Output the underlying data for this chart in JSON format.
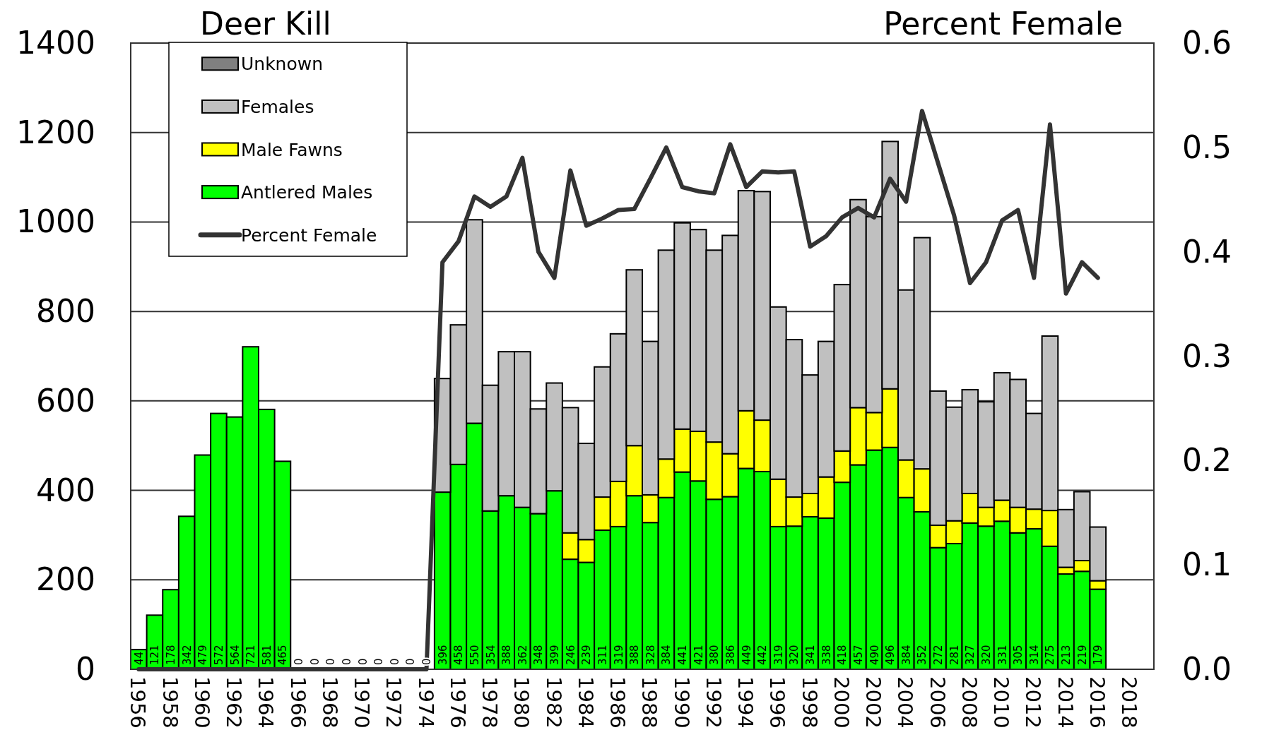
{
  "chart_data": {
    "type": "bar",
    "stacked": true,
    "ylabel": "Deer Kill",
    "y2label": "Percent Female",
    "x": [
      1956,
      1957,
      1958,
      1959,
      1960,
      1961,
      1962,
      1963,
      1964,
      1965,
      1966,
      1967,
      1968,
      1969,
      1970,
      1971,
      1972,
      1973,
      1974,
      1975,
      1976,
      1977,
      1978,
      1979,
      1980,
      1981,
      1982,
      1983,
      1984,
      1985,
      1986,
      1987,
      1988,
      1989,
      1990,
      1991,
      1992,
      1993,
      1994,
      1995,
      1996,
      1997,
      1998,
      1999,
      2000,
      2001,
      2002,
      2003,
      2004,
      2005,
      2006,
      2007,
      2008,
      2009,
      2010,
      2011,
      2012,
      2013,
      2014,
      2015,
      2016
    ],
    "xlim": [
      1955.5,
      2019.5
    ],
    "xticks": [
      1956,
      1958,
      1960,
      1962,
      1964,
      1966,
      1968,
      1970,
      1972,
      1974,
      1976,
      1978,
      1980,
      1982,
      1984,
      1986,
      1988,
      1990,
      1992,
      1994,
      1996,
      1998,
      2000,
      2002,
      2004,
      2006,
      2008,
      2010,
      2012,
      2014,
      2016,
      2018
    ],
    "ylim": [
      0,
      1400
    ],
    "yticks": [
      0,
      200,
      400,
      600,
      800,
      1000,
      1200,
      1400
    ],
    "y2lim": [
      0,
      0.6
    ],
    "y2ticks": [
      {
        "value": 0,
        "label": "0.0"
      },
      0.1,
      0.2,
      0.3,
      0.4,
      0.5,
      0.6
    ],
    "grid": "y",
    "legend": "top left",
    "series": [
      {
        "name": "Antlered Males",
        "color": "#00ff00",
        "values": [
          44,
          121,
          178,
          342,
          479,
          572,
          564,
          721,
          581,
          465,
          0,
          0,
          0,
          0,
          0,
          0,
          0,
          0,
          0,
          396,
          458,
          550,
          354,
          388,
          362,
          348,
          399,
          246,
          239,
          311,
          319,
          388,
          328,
          384,
          441,
          421,
          380,
          386,
          449,
          442,
          319,
          320,
          341,
          338,
          418,
          457,
          490,
          496,
          384,
          352,
          272,
          281,
          327,
          320,
          331,
          305,
          314,
          275,
          213,
          219,
          179
        ],
        "value_labels": [
          "44",
          "121",
          "178",
          "342",
          "479",
          "572",
          "564",
          "721",
          "581",
          "465",
          "0",
          "0",
          "0",
          "0",
          "0",
          "0",
          "0",
          "0",
          "0",
          "396",
          "458",
          "550",
          "354",
          "388",
          "362",
          "348",
          "399",
          "246",
          "239",
          "311",
          "319",
          "388",
          "328",
          "384",
          "441",
          "421",
          "380",
          "386",
          "449",
          "442",
          "319",
          "320",
          "341",
          "338",
          "418",
          "457",
          "490",
          "496",
          "384",
          "352",
          "272",
          "281",
          "327",
          "320",
          "331",
          "305",
          "314",
          "275",
          "213",
          "219",
          "179"
        ]
      },
      {
        "name": "Male Fawns",
        "color": "#ffff00",
        "values": [
          null,
          null,
          null,
          null,
          null,
          null,
          null,
          null,
          null,
          null,
          null,
          null,
          null,
          null,
          null,
          null,
          null,
          null,
          null,
          null,
          null,
          null,
          null,
          null,
          null,
          null,
          null,
          59,
          51,
          74,
          101,
          112,
          62,
          86,
          96,
          111,
          128,
          96,
          129,
          115,
          106,
          65,
          52,
          92,
          70,
          128,
          84,
          131,
          84,
          96,
          50,
          51,
          66,
          42,
          47,
          57,
          44,
          80,
          15,
          24,
          19
        ]
      },
      {
        "name": "Females",
        "color": "#c0c0c0",
        "values": [
          null,
          null,
          null,
          null,
          null,
          null,
          null,
          null,
          null,
          null,
          null,
          null,
          null,
          null,
          null,
          null,
          null,
          null,
          null,
          254,
          312,
          455,
          281,
          322,
          348,
          234,
          241,
          280,
          215,
          291,
          330,
          393,
          343,
          467,
          461,
          451,
          429,
          488,
          492,
          511,
          385,
          352,
          265,
          303,
          372,
          465,
          438,
          553,
          380,
          517,
          300,
          254,
          232,
          236,
          285,
          286,
          214,
          390,
          129,
          154,
          120
        ]
      },
      {
        "name": "Unknown",
        "color": "#808080",
        "values": [
          null,
          null,
          null,
          null,
          null,
          null,
          null,
          null,
          null,
          null,
          null,
          null,
          null,
          null,
          null,
          null,
          null,
          null,
          null,
          0,
          0,
          0,
          0,
          0,
          0,
          0,
          0,
          0,
          0,
          0,
          0,
          0,
          0,
          0,
          0,
          0,
          0,
          0,
          0,
          0,
          0,
          0,
          0,
          0,
          0,
          0,
          0,
          0,
          0,
          0,
          0,
          0,
          0,
          0,
          0,
          0,
          0,
          0,
          0,
          0,
          0
        ]
      },
      {
        "name": "Percent Female",
        "type": "line",
        "axis": "y2",
        "color": "#333333",
        "values": [
          0,
          0,
          0,
          0,
          0,
          0,
          0,
          0,
          0,
          0,
          0,
          0,
          0,
          0,
          0,
          0,
          0,
          0,
          0,
          0.39,
          0.41,
          0.453,
          0.443,
          0.453,
          0.49,
          0.4,
          0.375,
          0.478,
          0.425,
          0.432,
          0.44,
          0.441,
          0.47,
          0.5,
          0.462,
          0.458,
          0.456,
          0.503,
          0.462,
          0.477,
          0.476,
          0.477,
          0.405,
          0.415,
          0.433,
          0.442,
          0.433,
          0.47,
          0.448,
          0.535,
          0.485,
          0.435,
          0.37,
          0.39,
          0.43,
          0.44,
          0.375,
          0.522,
          0.36,
          0.39,
          0.375
        ]
      }
    ]
  }
}
